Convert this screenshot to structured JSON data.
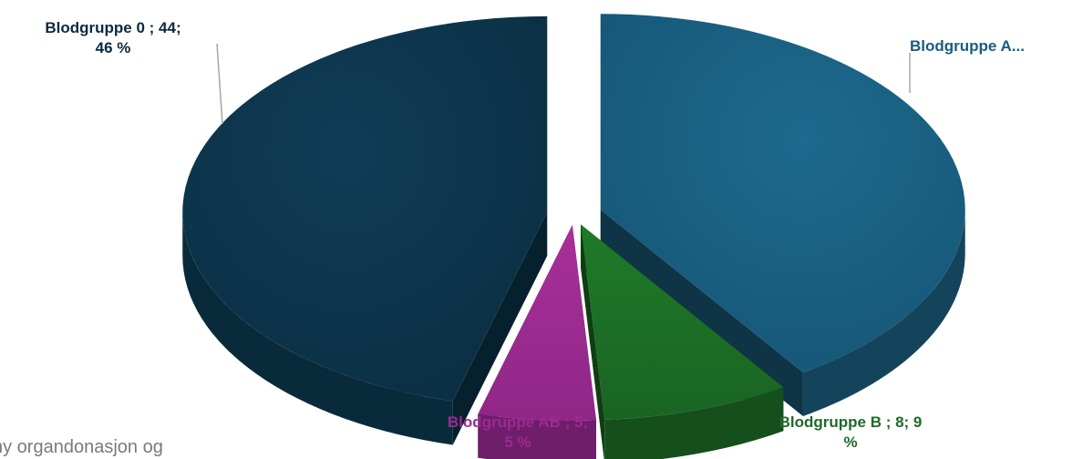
{
  "chart_data": {
    "type": "pie",
    "style": "3d-exploded",
    "categories": [
      "Blodgruppe 0",
      "Blodgruppe A",
      "Blodgruppe B",
      "Blodgruppe AB"
    ],
    "values": [
      44,
      39,
      8,
      5
    ],
    "percents": [
      46,
      41,
      9,
      5
    ],
    "data_labels": [
      "Blodgruppe 0 ; 44;\n46 %",
      "Blodgruppe A...",
      "Blodgruppe B ; 8; 9\n%",
      "Blodgruppe AB ; 5;\n5 %"
    ],
    "colors": [
      "#0c3a52",
      "#1a5f80",
      "#1d6e25",
      "#9a2a92"
    ],
    "legend": "none"
  },
  "footer_text": "ny organdonasjon og"
}
